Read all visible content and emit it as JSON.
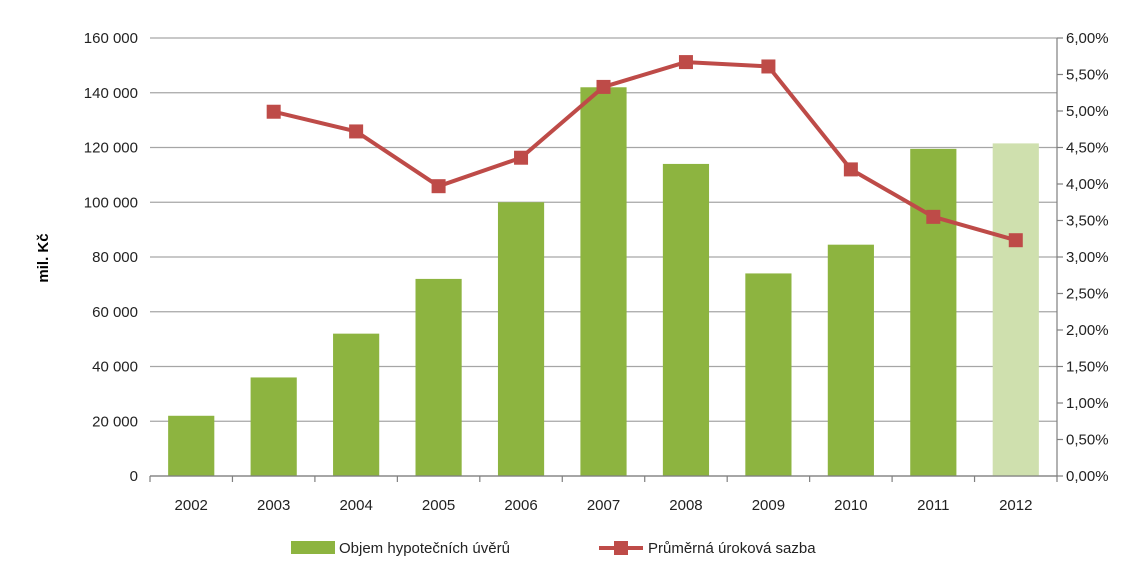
{
  "chart_data": {
    "type": "bar",
    "categories": [
      "2002",
      "2003",
      "2004",
      "2005",
      "2006",
      "2007",
      "2008",
      "2009",
      "2010",
      "2011",
      "2012"
    ],
    "ylabel": "mil. Kč",
    "ylim": [
      0,
      160000
    ],
    "y_ticks": [
      0,
      20000,
      40000,
      60000,
      80000,
      100000,
      120000,
      140000,
      160000
    ],
    "y_tick_labels": [
      "0",
      "20 000",
      "40 000",
      "60 000",
      "80 000",
      "100 000",
      "120 000",
      "140 000",
      "160 000"
    ],
    "y2lim": [
      0,
      6.0
    ],
    "y2_ticks": [
      0,
      0.5,
      1.0,
      1.5,
      2.0,
      2.5,
      3.0,
      3.5,
      4.0,
      4.5,
      5.0,
      5.5,
      6.0
    ],
    "y2_tick_labels": [
      "0,00%",
      "0,50%",
      "1,00%",
      "1,50%",
      "2,00%",
      "2,50%",
      "3,00%",
      "3,50%",
      "4,00%",
      "4,50%",
      "5,00%",
      "5,50%",
      "6,00%"
    ],
    "grid": true,
    "legend_position": "bottom",
    "series": [
      {
        "name": "Objem hypotečních úvěrů",
        "type": "bar",
        "axis": "left",
        "color": "#8db440",
        "highlight_colors": {
          "2012": "#cfe0ae"
        },
        "values": [
          22000,
          36000,
          52000,
          72000,
          100000,
          142000,
          114000,
          74000,
          84500,
          119500,
          121500
        ]
      },
      {
        "name": "Průměrná úroková sazba",
        "type": "line",
        "axis": "right",
        "color": "#be4b48",
        "values": [
          null,
          4.99,
          4.72,
          3.97,
          4.36,
          5.33,
          5.67,
          5.61,
          4.2,
          3.55,
          3.23
        ]
      }
    ]
  }
}
